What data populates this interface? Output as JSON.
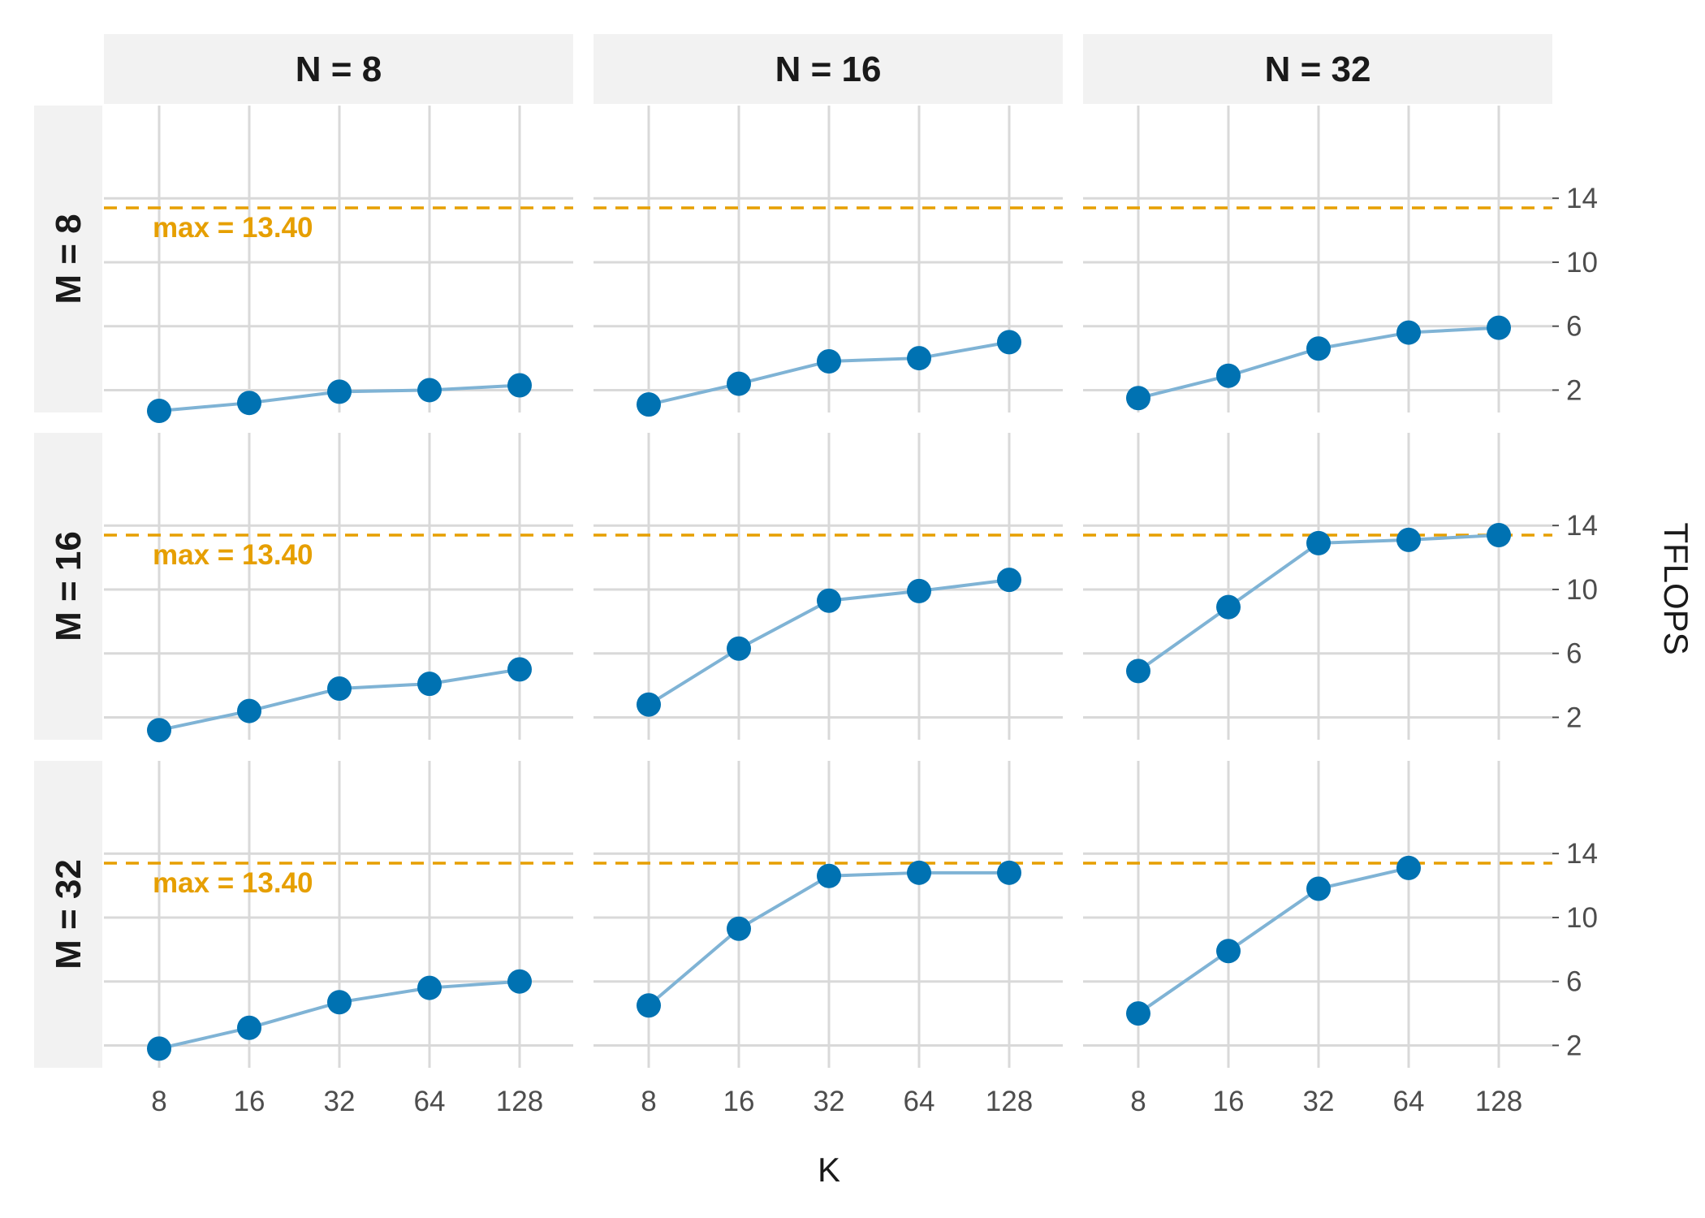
{
  "chart_data": {
    "type": "line",
    "facet_cols": [
      "N = 8",
      "N = 16",
      "N = 32"
    ],
    "facet_rows": [
      "M = 8",
      "M = 16",
      "M = 32"
    ],
    "x": [
      8,
      16,
      32,
      64,
      128
    ],
    "x_tick_labels": [
      "8",
      "16",
      "32",
      "64",
      "128"
    ],
    "x_scale": "log2",
    "xlabel": "K",
    "ylabel": "TFLOPS",
    "y_ticks": [
      2,
      6,
      10,
      14
    ],
    "y_tick_labels": [
      "2",
      "6",
      "10",
      "14"
    ],
    "ylim": [
      0.6,
      19.8
    ],
    "grid": true,
    "reference_line": {
      "value": 13.4,
      "label": "max = 13.40",
      "color": "#e69f00"
    },
    "colors": {
      "point": "#0072b2",
      "line": "#7fb3d5",
      "strip": "#f2f2f2",
      "grid": "#d9d9d9"
    },
    "panels": [
      [
        {
          "values": [
            0.7,
            1.2,
            1.9,
            2.0,
            2.3
          ]
        },
        {
          "values": [
            1.1,
            2.4,
            3.8,
            4.0,
            5.0
          ]
        },
        {
          "values": [
            1.5,
            2.9,
            4.6,
            5.6,
            5.9
          ]
        }
      ],
      [
        {
          "values": [
            1.2,
            2.4,
            3.8,
            4.1,
            5.0
          ]
        },
        {
          "values": [
            2.8,
            6.3,
            9.3,
            9.9,
            10.6
          ]
        },
        {
          "values": [
            4.9,
            8.9,
            12.9,
            13.1,
            13.4
          ]
        }
      ],
      [
        {
          "values": [
            1.8,
            3.1,
            4.7,
            5.6,
            6.0
          ]
        },
        {
          "values": [
            4.5,
            9.3,
            12.6,
            12.8,
            12.8
          ]
        },
        {
          "values": [
            4.0,
            7.9,
            11.8,
            13.1,
            null
          ]
        }
      ]
    ]
  }
}
